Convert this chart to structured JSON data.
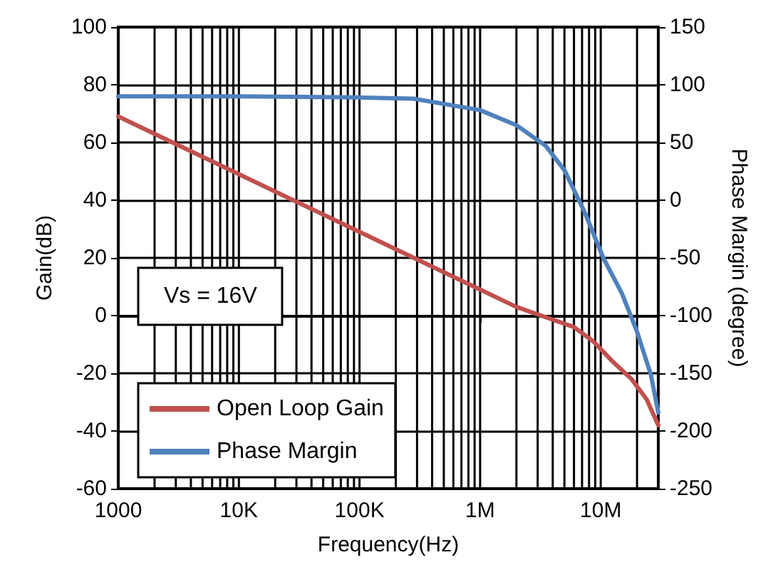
{
  "chart_data": {
    "type": "line",
    "xlabel": "Frequency(Hz)",
    "ylabel": "Gain(dB)",
    "y2label": "Phase Margin (degree)",
    "log": "x",
    "grid": true,
    "legend": "bottom left",
    "marker": "none",
    "line_style": "solid",
    "xlim": [
      1000,
      30000000
    ],
    "xticks": [
      {
        "value": 1000,
        "label": "1000"
      },
      {
        "value": 10000,
        "label": "10K"
      },
      {
        "value": 100000,
        "label": "100K"
      },
      {
        "value": 1000000,
        "label": "1M"
      },
      {
        "value": 10000000,
        "label": "10M"
      }
    ],
    "ylim": [
      -60,
      100
    ],
    "yticks": [
      -60,
      -40,
      -20,
      0,
      20,
      40,
      60,
      80,
      100
    ],
    "y2lim": [
      -250,
      150
    ],
    "y2ticks": [
      -250,
      -200,
      -150,
      -100,
      -50,
      0,
      50,
      100,
      150
    ],
    "annotations": [
      "Vs = 16V"
    ],
    "series": [
      {
        "name": "Open Loop Gain",
        "color": "#c0504d",
        "x": [
          1000,
          10000,
          100000,
          1000000,
          2000000,
          6000000,
          8700000,
          12600000,
          18000000,
          24000000,
          30000000
        ],
        "values": [
          69,
          49,
          29,
          9,
          3,
          -4,
          -9,
          -16,
          -22,
          -29,
          -38
        ]
      },
      {
        "name": "Phase Margin",
        "color": "#4f81bd",
        "axis": "y2",
        "x": [
          1000,
          10000,
          100000,
          280000,
          1000000,
          2000000,
          3500000,
          5000000,
          7400000,
          10500000,
          15000000,
          20000000,
          26000000,
          30000000
        ],
        "values": [
          90,
          90,
          89,
          88,
          78,
          65,
          47,
          26,
          -11,
          -50,
          -81,
          -114,
          -151,
          -184
        ]
      }
    ]
  }
}
